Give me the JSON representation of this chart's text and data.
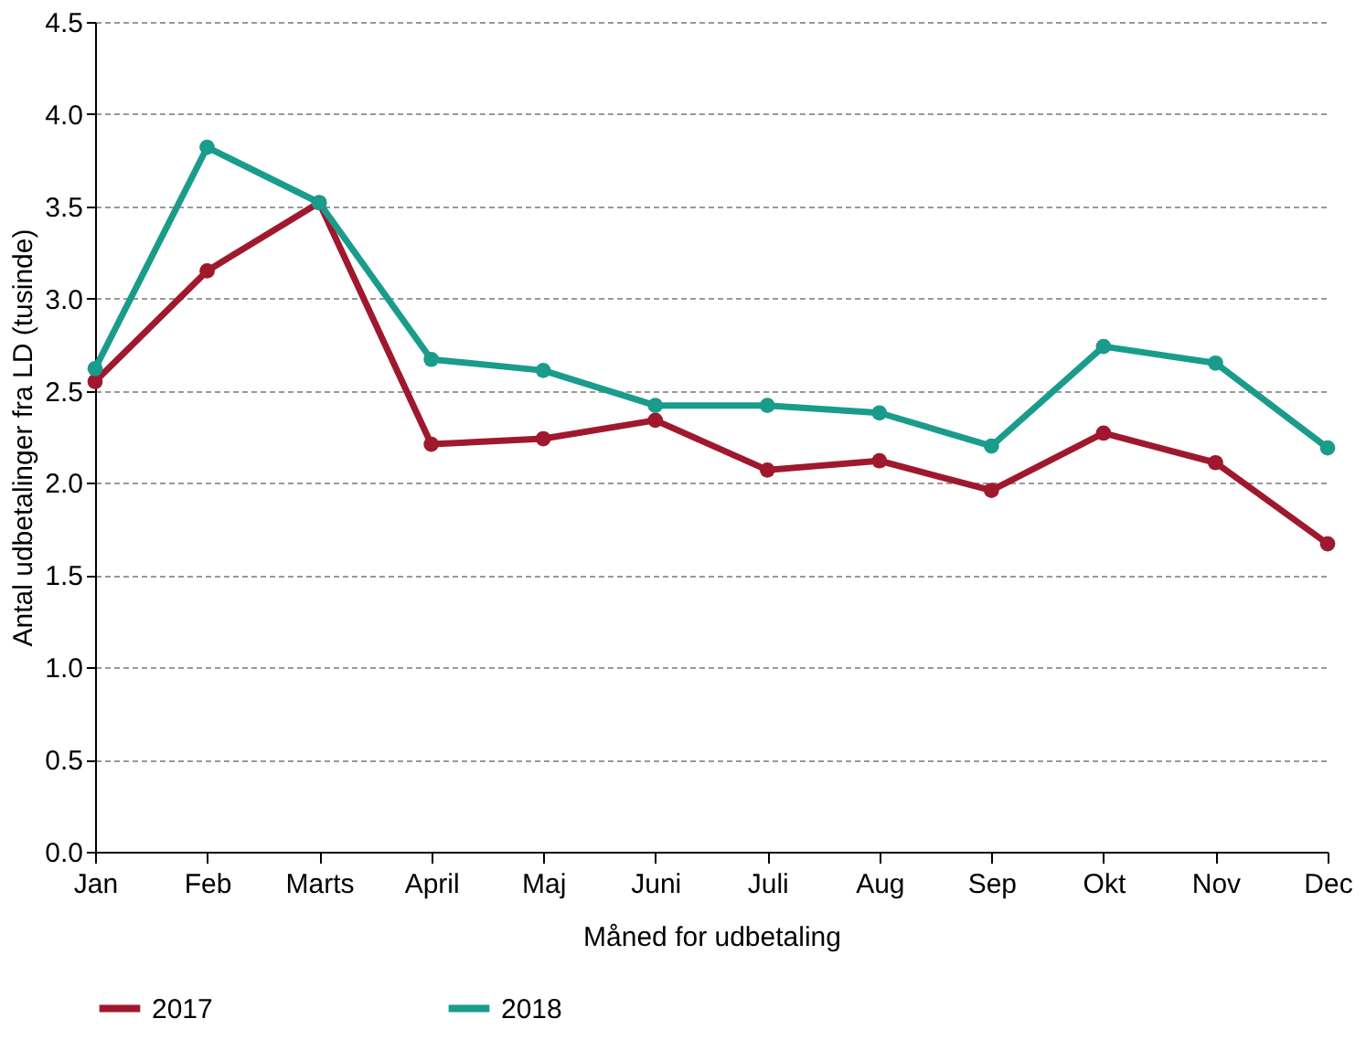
{
  "chart_data": {
    "type": "line",
    "xlabel": "Måned for udbetaling",
    "ylabel": "Antal udbetalinger fra LD (tusinde)",
    "categories": [
      "Jan",
      "Feb",
      "Marts",
      "April",
      "Maj",
      "Juni",
      "Juli",
      "Aug",
      "Sep",
      "Okt",
      "Nov",
      "Dec"
    ],
    "series": [
      {
        "name": "2017",
        "color": "#a0182d",
        "values": [
          2.55,
          3.15,
          3.52,
          2.21,
          2.24,
          2.34,
          2.07,
          2.12,
          1.96,
          2.27,
          2.11,
          1.67
        ]
      },
      {
        "name": "2018",
        "color": "#1a9c8c",
        "values": [
          2.62,
          3.82,
          3.52,
          2.67,
          2.61,
          2.42,
          2.42,
          2.38,
          2.2,
          2.74,
          2.65,
          2.19
        ]
      }
    ],
    "ylim": [
      0,
      4.5
    ],
    "yticks": [
      {
        "value": 0,
        "label": "0.0"
      },
      0.5,
      {
        "value": 1,
        "label": "1.0"
      },
      1.5,
      {
        "value": 2,
        "label": "2.0"
      },
      2.5,
      {
        "value": 3,
        "label": "3.0"
      },
      3.5,
      {
        "value": 4,
        "label": "4.0"
      },
      4.5
    ],
    "grid": "y",
    "legend": "bottom",
    "marker": "circle",
    "line_style": "solid"
  }
}
